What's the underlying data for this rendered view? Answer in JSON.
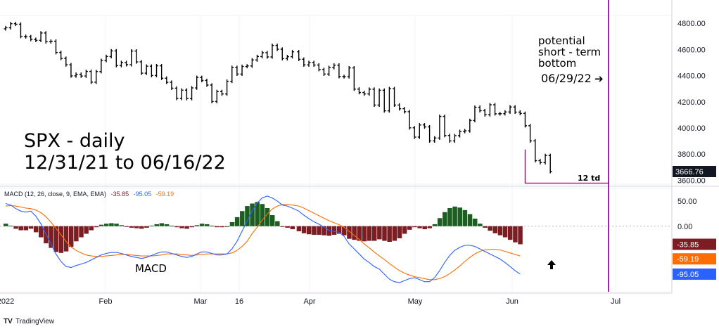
{
  "chart_data": [
    {
      "type": "candlestick-bars",
      "title": "SPX - daily",
      "subtitle": "12/31/21 to 06/16/22",
      "y_ticks": [
        "4800.00",
        "4600.00",
        "4400.00",
        "4200.00",
        "4000.00",
        "3800.00",
        "3600.00"
      ],
      "ylim": [
        3570,
        4860
      ],
      "x_tick_labels": [
        "2022",
        "Feb",
        "Mar",
        "16",
        "Apr",
        "May",
        "Jun",
        "Jul"
      ],
      "last_price_label": "3666.76",
      "colors": {
        "bars": "#000000",
        "vline": "#9c27b0",
        "box": "#880e4f"
      },
      "annotations": {
        "potential_text": [
          "potential",
          "short - term",
          "bottom"
        ],
        "target_date": "06/29/22",
        "arrow": "➔",
        "td_label": "12 td"
      },
      "closes": [
        4766,
        4797,
        4793,
        4700,
        4697,
        4677,
        4670,
        4726,
        4659,
        4663,
        4577,
        4532,
        4483,
        4398,
        4410,
        4397,
        4432,
        4350,
        4431,
        4516,
        4546,
        4589,
        4477,
        4500,
        4484,
        4588,
        4505,
        4419,
        4472,
        4401,
        4475,
        4380,
        4349,
        4304,
        4226,
        4289,
        4225,
        4306,
        4386,
        4363,
        4328,
        4202,
        4278,
        4260,
        4357,
        4462,
        4412,
        4470,
        4474,
        4520,
        4546,
        4575,
        4543,
        4631,
        4602,
        4530,
        4545,
        4582,
        4525,
        4482,
        4500,
        4481,
        4447,
        4412,
        4462,
        4480,
        4393,
        4392,
        4459,
        4297,
        4271,
        4260,
        4296,
        4175,
        4288,
        4131,
        4300,
        4175,
        4147,
        4124,
        4001,
        3930,
        4023,
        4008,
        3901,
        3923,
        4088,
        3942,
        3901,
        3941,
        3973,
        3978,
        4057,
        4158,
        4132,
        4101,
        4177,
        4108,
        4109,
        4122,
        4160,
        4121,
        4111,
        4017,
        3901,
        3750,
        3735,
        3789,
        3667
      ],
      "gaps_after": [
        57
      ],
      "box_x_start": 103
    },
    {
      "type": "bar-line",
      "header": "MACD (12, 26, close, 9, EMA, EMA)",
      "header_values": [
        "-35.85",
        "-95.05",
        "-59.19"
      ],
      "label": "MACD",
      "y_ticks": [
        "50.00",
        "0.00"
      ],
      "ylim": [
        -130,
        75
      ],
      "badges": [
        {
          "text": "-35.85",
          "value": -35.85,
          "color": "#7b1e24"
        },
        {
          "text": "-59.19",
          "value": -59.19,
          "color": "#ff6d00"
        },
        {
          "text": "-95.05",
          "value": -95.05,
          "color": "#2962ff"
        }
      ],
      "colors": {
        "macd": "#2962ff",
        "signal": "#ff6d00",
        "hist_pos": "#1b5e20",
        "hist_neg": "#7b1e24"
      },
      "macd": [
        45,
        42,
        35,
        30,
        28,
        30,
        20,
        5,
        -15,
        -35,
        -55,
        -70,
        -80,
        -82,
        -78,
        -75,
        -72,
        -67,
        -62,
        -57,
        -54,
        -52,
        -52,
        -54,
        -57,
        -60,
        -62,
        -64,
        -62,
        -58,
        -54,
        -51,
        -51,
        -54,
        -57,
        -60,
        -62,
        -60,
        -55,
        -51,
        -51,
        -54,
        -57,
        -57,
        -55,
        -45,
        -30,
        -10,
        10,
        30,
        46,
        56,
        60,
        56,
        50,
        42,
        40,
        36,
        30,
        22,
        15,
        9,
        4,
        -2,
        -8,
        -10,
        -12,
        -20,
        -35,
        -45,
        -55,
        -65,
        -72,
        -80,
        -85,
        -95,
        -105,
        -110,
        -112,
        -108,
        -104,
        -102,
        -106,
        -110,
        -110,
        -102,
        -88,
        -72,
        -58,
        -48,
        -42,
        -38,
        -38,
        -40,
        -45,
        -50,
        -55,
        -60,
        -65,
        -72,
        -80,
        -88,
        -95
      ],
      "signal": [
        40,
        41,
        40,
        38,
        36,
        35,
        32,
        27,
        19,
        8,
        -4,
        -17,
        -30,
        -41,
        -48,
        -53,
        -57,
        -59,
        -60,
        -60,
        -59,
        -58,
        -57,
        -56,
        -56,
        -57,
        -58,
        -59,
        -59,
        -59,
        -58,
        -57,
        -55,
        -55,
        -55,
        -56,
        -57,
        -58,
        -57,
        -56,
        -55,
        -55,
        -55,
        -55,
        -55,
        -53,
        -48,
        -40,
        -30,
        -15,
        -2,
        12,
        24,
        34,
        40,
        43,
        43,
        42,
        40,
        36,
        31,
        26,
        21,
        16,
        11,
        7,
        3,
        -2,
        -10,
        -18,
        -26,
        -35,
        -43,
        -51,
        -59,
        -66,
        -74,
        -81,
        -88,
        -93,
        -97,
        -100,
        -102,
        -104,
        -106,
        -106,
        -104,
        -100,
        -94,
        -87,
        -79,
        -70,
        -62,
        -55,
        -50,
        -47,
        -46,
        -46,
        -47,
        -50,
        -53,
        -56,
        -59.19
      ]
    }
  ],
  "branding": {
    "logo": "TV",
    "name": "TradingView"
  }
}
